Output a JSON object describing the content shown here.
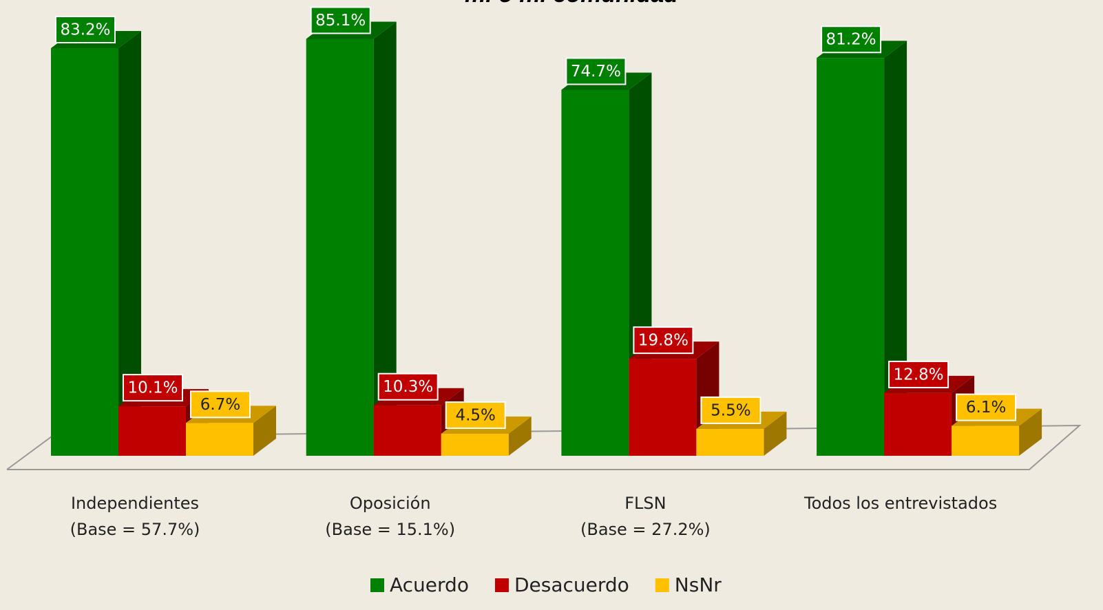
{
  "chart_data": {
    "type": "bar3d",
    "title": "mí o mi comunidad",
    "categories": [
      [
        "Independientes",
        "(Base = 57.7%)"
      ],
      [
        "Oposición",
        "(Base = 15.1%)"
      ],
      [
        "FLSN",
        "(Base = 27.2%)"
      ],
      [
        "Todos los entrevistados"
      ]
    ],
    "series": [
      {
        "name": "Acuerdo",
        "color": "#008000",
        "values": [
          83.2,
          85.1,
          74.7,
          81.2
        ],
        "value_labels": [
          "83.2%",
          "85.1%",
          "74.7%",
          "81.2%"
        ]
      },
      {
        "name": "Desacuerdo",
        "color": "#c00000",
        "values": [
          10.1,
          10.3,
          19.8,
          12.8
        ],
        "value_labels": [
          "10.1%",
          "10.3%",
          "19.8%",
          "12.8%"
        ]
      },
      {
        "name": "NsNr",
        "color": "#ffc000",
        "values": [
          6.7,
          4.5,
          5.5,
          6.1
        ],
        "value_labels": [
          "6.7%",
          "4.5%",
          "5.5%",
          "6.1%"
        ]
      }
    ]
  }
}
